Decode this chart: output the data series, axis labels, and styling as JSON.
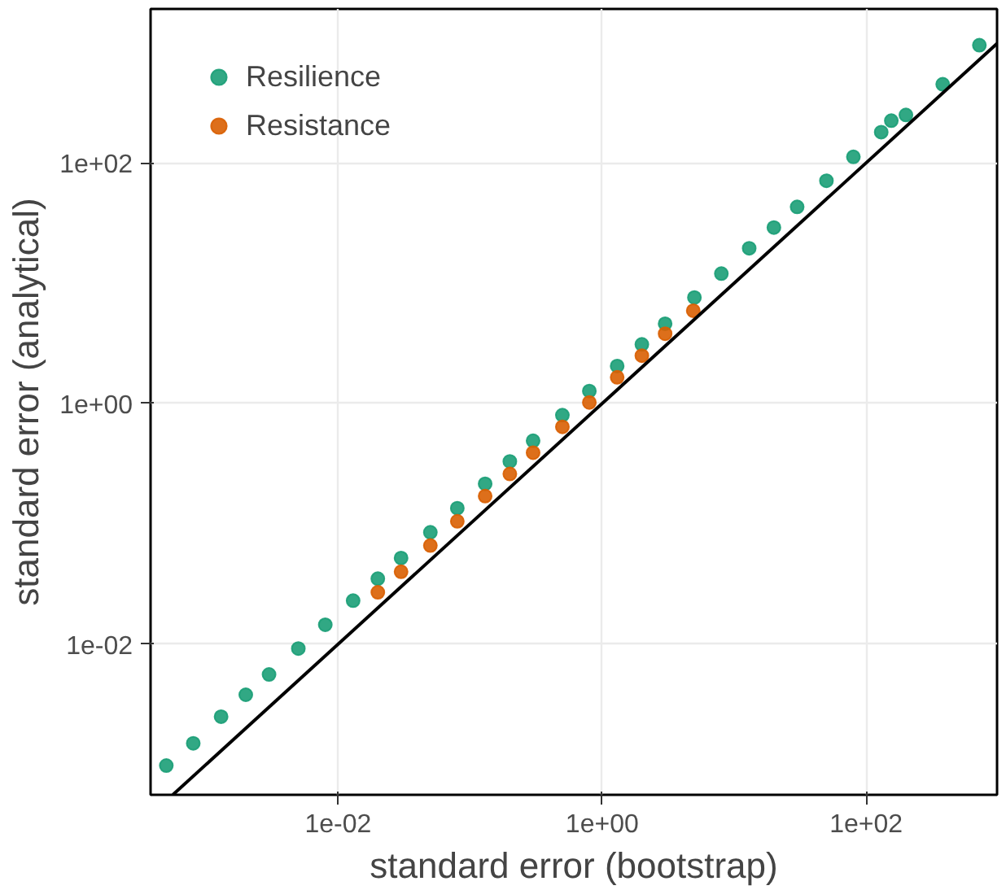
{
  "chart_data": {
    "type": "scatter",
    "xlabel": "standard error (bootstrap)",
    "ylabel": "standard error (analytical)",
    "log": "xy",
    "grid": true,
    "legend": "top left",
    "marker": "circle",
    "xlim": [
      0.00038,
      980
    ],
    "ylim": [
      0.00056,
      1900
    ],
    "xticks": [
      {
        "value": 0.01,
        "label": "1e-02"
      },
      {
        "value": 1,
        "label": "1e+00"
      },
      {
        "value": 100,
        "label": "1e+02"
      }
    ],
    "yticks": [
      {
        "value": 0.01,
        "label": "1e-02"
      },
      {
        "value": 1,
        "label": "1e+00"
      },
      {
        "value": 100,
        "label": "1e+02"
      }
    ],
    "series": [
      {
        "name": "Resilience",
        "color": "#1b9e77",
        "x": [
          0.0005,
          0.0008,
          0.0013,
          0.002,
          0.003,
          0.005,
          0.008,
          0.013,
          0.02,
          0.03,
          0.05,
          0.08,
          0.13,
          0.2,
          0.3,
          0.5,
          0.8,
          1.3,
          2,
          3,
          5,
          8,
          13,
          20,
          30,
          50,
          80,
          130,
          155,
          200,
          380,
          720
        ],
        "values": [
          0.00098,
          0.0015,
          0.0025,
          0.0038,
          0.0056,
          0.0092,
          0.0145,
          0.023,
          0.035,
          0.052,
          0.085,
          0.135,
          0.215,
          0.33,
          0.49,
          0.8,
          1.27,
          2.05,
          3.1,
          4.6,
          7.6,
          12,
          19.5,
          29,
          43,
          71,
          112,
          180,
          224,
          250,
          450,
          950
        ]
      },
      {
        "name": "Resistance",
        "color": "#d95f02",
        "x": [
          0.02,
          0.03,
          0.05,
          0.08,
          0.13,
          0.2,
          0.3,
          0.5,
          0.8,
          1.3,
          2,
          3,
          4.9
        ],
        "values": [
          0.027,
          0.04,
          0.066,
          0.105,
          0.17,
          0.26,
          0.39,
          0.64,
          1.02,
          1.65,
          2.5,
          3.8,
          5.9
        ]
      },
      {
        "type": "line",
        "marker": "none",
        "color": "#000000",
        "x": [
          0.00056,
          980
        ],
        "values": [
          0.00056,
          980
        ]
      }
    ]
  }
}
